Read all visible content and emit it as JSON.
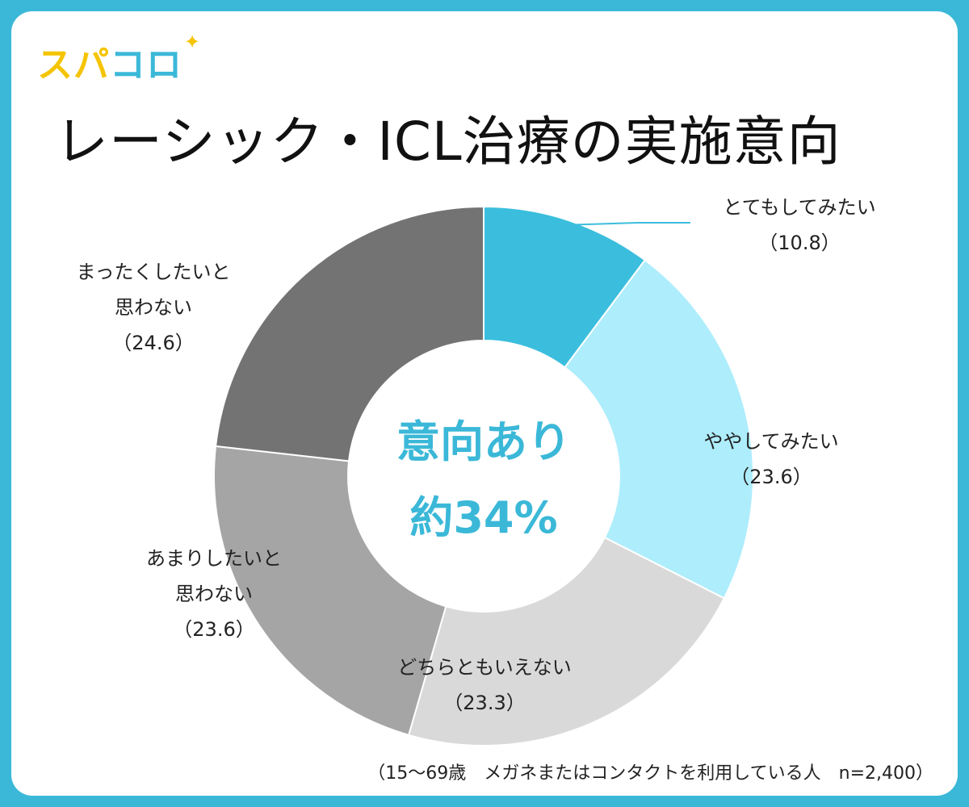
{
  "logo": {
    "part1": "スパ",
    "part2": "コロ",
    "star": "✦"
  },
  "title": "レーシック・ICL治療の実施意向",
  "center": {
    "line1": "意向あり",
    "line2": "約34%"
  },
  "footnote": "（15〜69歳　メガネまたはコンタクトを利用している人　n=2,400）",
  "colors": {
    "frame": "#3bb8d8",
    "accent": "#3bb8d8",
    "logo_yellow": "#f5c400"
  },
  "chart_data": {
    "type": "pie",
    "style": "donut",
    "slices": [
      {
        "label_lines": [
          "とてもしてみたい"
        ],
        "value": 10.8,
        "value_text": "（10.8）",
        "color": "#3bbedd"
      },
      {
        "label_lines": [
          "ややしてみたい"
        ],
        "value": 23.6,
        "value_text": "（23.6）",
        "color": "#aeedfc"
      },
      {
        "label_lines": [
          "どちらともいえない"
        ],
        "value": 23.3,
        "value_text": "（23.3）",
        "color": "#d9d9d9"
      },
      {
        "label_lines": [
          "あまりしたいと",
          "思わない"
        ],
        "value": 23.6,
        "value_text": "（23.6）",
        "color": "#a5a5a5"
      },
      {
        "label_lines": [
          "まったくしたいと",
          "思わない"
        ],
        "value": 24.6,
        "value_text": "（24.6）",
        "color": "#737373"
      }
    ]
  }
}
